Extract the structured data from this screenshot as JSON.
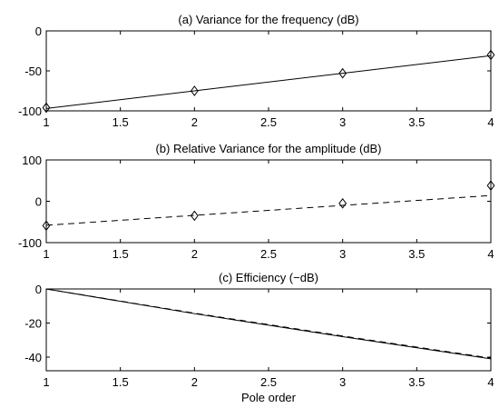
{
  "chart_data": [
    {
      "type": "line",
      "title": "(a) Variance for the frequency (dB)",
      "xlabel": "",
      "ylabel": "",
      "xlim": [
        1,
        4
      ],
      "ylim": [
        -100,
        0
      ],
      "xticks": [
        1,
        1.5,
        2,
        2.5,
        3,
        3.5,
        4
      ],
      "yticks": [
        -100,
        -50,
        0
      ],
      "grid": false,
      "series": [
        {
          "style": "solid",
          "marker": "none",
          "x": [
            1,
            4
          ],
          "y": [
            -97,
            -31
          ]
        },
        {
          "style": "none",
          "marker": "diamond",
          "x": [
            1,
            2,
            3,
            4
          ],
          "y": [
            -96,
            -75,
            -53,
            -30
          ]
        }
      ]
    },
    {
      "type": "line",
      "title": "(b) Relative Variance for the amplitude (dB)",
      "xlabel": "",
      "ylabel": "",
      "xlim": [
        1,
        4
      ],
      "ylim": [
        -100,
        100
      ],
      "xticks": [
        1,
        1.5,
        2,
        2.5,
        3,
        3.5,
        4
      ],
      "yticks": [
        -100,
        0,
        100
      ],
      "grid": false,
      "series": [
        {
          "style": "dashed",
          "marker": "none",
          "x": [
            1,
            4
          ],
          "y": [
            -58,
            14
          ]
        },
        {
          "style": "none",
          "marker": "diamond",
          "x": [
            1,
            2,
            3,
            4
          ],
          "y": [
            -59,
            -35,
            -5,
            38
          ]
        }
      ]
    },
    {
      "type": "line",
      "title": "(c) Efficiency (−dB)",
      "xlabel": "Pole order",
      "ylabel": "",
      "xlim": [
        1,
        4
      ],
      "ylim": [
        -48,
        0
      ],
      "xticks": [
        1,
        1.5,
        2,
        2.5,
        3,
        3.5,
        4
      ],
      "yticks": [
        -40,
        -20,
        0
      ],
      "grid": false,
      "series": [
        {
          "style": "solid",
          "marker": "none",
          "x": [
            1,
            2,
            3,
            4
          ],
          "y": [
            0,
            -14.5,
            -28,
            -41
          ]
        },
        {
          "style": "dashed",
          "marker": "none",
          "x": [
            1,
            2,
            3,
            4
          ],
          "y": [
            0,
            -14.2,
            -27.6,
            -40.6
          ]
        }
      ]
    }
  ]
}
